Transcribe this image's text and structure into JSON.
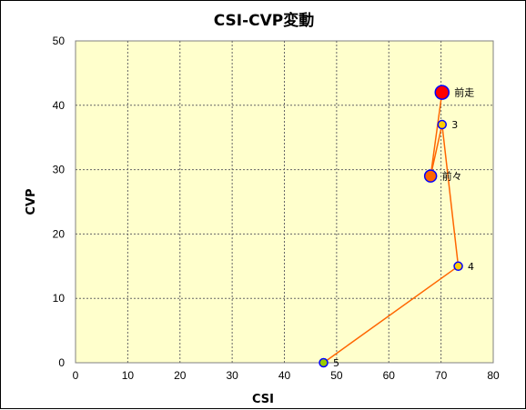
{
  "chart_data": {
    "type": "scatter",
    "title": "CSI-CVP変動",
    "xlabel": "CSI",
    "ylabel": "CVP",
    "xlim": [
      0,
      80
    ],
    "ylim": [
      0,
      50
    ],
    "xticks": [
      0,
      10,
      20,
      30,
      40,
      50,
      60,
      70,
      80
    ],
    "yticks": [
      0,
      10,
      20,
      30,
      40,
      50
    ],
    "grid": true,
    "plot_background": "#ffffcc",
    "line_color": "#ff6600",
    "points": [
      {
        "label": "5",
        "x": 47.5,
        "y": 0,
        "fill": "#99cc00",
        "stroke": "#0000ff",
        "size": "small"
      },
      {
        "label": "4",
        "x": 73.3,
        "y": 15,
        "fill": "#ffcc00",
        "stroke": "#0000ff",
        "size": "small"
      },
      {
        "label": "3",
        "x": 70.2,
        "y": 37,
        "fill": "#ffcc00",
        "stroke": "#0000ff",
        "size": "small"
      },
      {
        "label": "前々",
        "x": 68.0,
        "y": 29,
        "fill": "#ff6600",
        "stroke": "#0000ff",
        "size": "medium"
      },
      {
        "label": "前走",
        "x": 70.2,
        "y": 42,
        "fill": "#ff0000",
        "stroke": "#0000ff",
        "size": "large"
      }
    ]
  }
}
